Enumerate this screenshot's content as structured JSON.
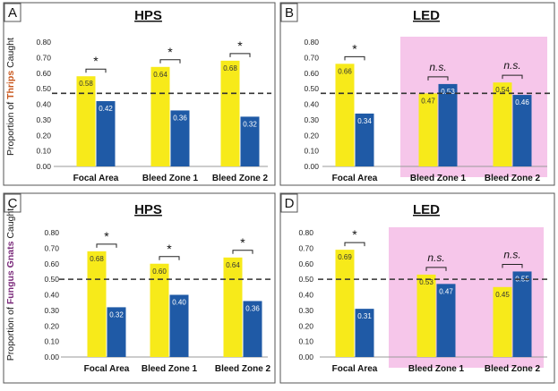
{
  "colors": {
    "yellow": "#f7ea1a",
    "blue": "#1f5aa6",
    "pink": "#f6c6ea",
    "border": "#555555",
    "dashed": "#333333"
  },
  "y_axis_labels": {
    "top": {
      "prefix": "Proportion of ",
      "highlight": "Thrips",
      "suffix": " Caught"
    },
    "bottom": {
      "prefix": "Proportion of ",
      "highlight": "Fungus Gnats",
      "suffix": " Caught"
    }
  },
  "chart_data": [
    {
      "panel": "A",
      "type": "bar",
      "title": "HPS",
      "categories": [
        "Focal Area",
        "Bleed Zone 1",
        "Bleed Zone 2"
      ],
      "series": [
        {
          "name": "yellow",
          "values": [
            0.58,
            0.64,
            0.68
          ]
        },
        {
          "name": "blue",
          "values": [
            0.42,
            0.36,
            0.32
          ]
        }
      ],
      "value_labels": [
        [
          "0.58",
          "0.64",
          "0.68"
        ],
        [
          "0.42",
          "0.36",
          "0.32"
        ]
      ],
      "significance": [
        "*",
        "*",
        "*"
      ],
      "pink_categories": [],
      "ylim": [
        0,
        0.8
      ],
      "yticks": [
        "0.00",
        "0.10",
        "0.20",
        "0.30",
        "0.40",
        "0.50",
        "0.60",
        "0.70",
        "0.80"
      ],
      "reference_line": 0.47,
      "ylabel_key": "top"
    },
    {
      "panel": "B",
      "type": "bar",
      "title": "LED",
      "categories": [
        "Focal Area",
        "Bleed Zone 1",
        "Bleed Zone 2"
      ],
      "series": [
        {
          "name": "yellow",
          "values": [
            0.66,
            0.47,
            0.54
          ]
        },
        {
          "name": "blue",
          "values": [
            0.34,
            0.53,
            0.46
          ]
        }
      ],
      "value_labels": [
        [
          "0.66",
          "0.47",
          "0.54"
        ],
        [
          "0.34",
          "0.53",
          "0.46"
        ]
      ],
      "significance": [
        "*",
        "n.s.",
        "n.s."
      ],
      "pink_categories": [
        1,
        2
      ],
      "ylim": [
        0,
        0.8
      ],
      "yticks": [
        "0.00",
        "0.10",
        "0.20",
        "0.30",
        "0.40",
        "0.50",
        "0.60",
        "0.70",
        "0.80"
      ],
      "reference_line": 0.47,
      "ylabel_key": null
    },
    {
      "panel": "C",
      "type": "bar",
      "title": "HPS",
      "categories": [
        "Focal Area",
        "Bleed Zone 1",
        "Bleed Zone 2"
      ],
      "series": [
        {
          "name": "yellow",
          "values": [
            0.68,
            0.6,
            0.64
          ]
        },
        {
          "name": "blue",
          "values": [
            0.32,
            0.4,
            0.36
          ]
        }
      ],
      "value_labels": [
        [
          "0.68",
          "0.60",
          "0.64"
        ],
        [
          "0.32",
          "0.40",
          "0.36"
        ]
      ],
      "significance": [
        "*",
        "*",
        "*"
      ],
      "pink_categories": [],
      "ylim": [
        0,
        0.8
      ],
      "yticks": [
        "0.00",
        "0.10",
        "0.20",
        "0.30",
        "0.40",
        "0.50",
        "0.60",
        "0.70",
        "0.80"
      ],
      "reference_line": 0.5,
      "ylabel_key": "bottom"
    },
    {
      "panel": "D",
      "type": "bar",
      "title": "LED",
      "categories": [
        "Focal Area",
        "Bleed Zone 1",
        "Bleed Zone 2"
      ],
      "series": [
        {
          "name": "yellow",
          "values": [
            0.69,
            0.53,
            0.45
          ]
        },
        {
          "name": "blue",
          "values": [
            0.31,
            0.47,
            0.55
          ]
        }
      ],
      "value_labels": [
        [
          "0.69",
          "0.53",
          "0.45"
        ],
        [
          "0.31",
          "0.47",
          "0.55"
        ]
      ],
      "significance": [
        "*",
        "n.s.",
        "n.s."
      ],
      "pink_categories": [
        1,
        2
      ],
      "ylim": [
        0,
        0.8
      ],
      "yticks": [
        "0.00",
        "0.10",
        "0.20",
        "0.30",
        "0.40",
        "0.50",
        "0.60",
        "0.70",
        "0.80"
      ],
      "reference_line": 0.5,
      "ylabel_key": null
    }
  ]
}
